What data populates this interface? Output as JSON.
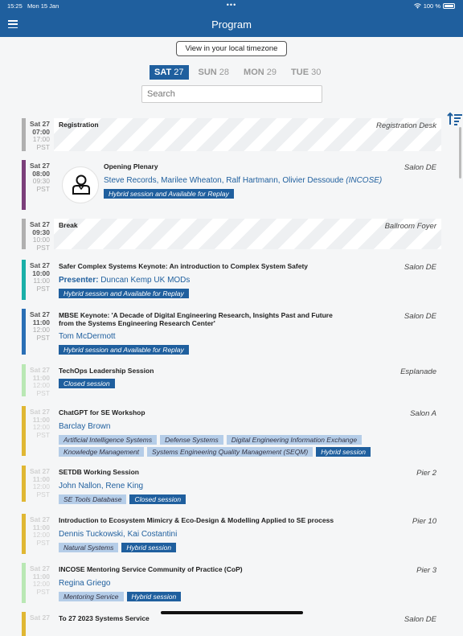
{
  "status": {
    "time": "15:25",
    "date": "Mon 15 Jan",
    "dots": "•••",
    "battery": "100 %"
  },
  "nav": {
    "title": "Program"
  },
  "timezone_button": "View in your local timezone",
  "days": [
    {
      "dow": "SAT",
      "num": "27",
      "active": true
    },
    {
      "dow": "SUN",
      "num": "28"
    },
    {
      "dow": "MON",
      "num": "29"
    },
    {
      "dow": "TUE",
      "num": "30"
    }
  ],
  "search": {
    "placeholder": "Search"
  },
  "colors": {
    "brand": "#1f5f9e",
    "gray": "#b0b0b0",
    "purple": "#7b3f7a",
    "teal": "#1ab0a8",
    "blue": "#2a6fb5",
    "light_green": "#b9e8b4",
    "mustard": "#e0b733"
  },
  "sessions": [
    {
      "day": "Sat 27",
      "start": "07:00",
      "end": "17:00",
      "tz": "PST",
      "title": "Registration",
      "room": "Registration Desk",
      "color": "#b0b0b0",
      "hatch": true,
      "speakers": "",
      "tags": []
    },
    {
      "day": "Sat 27",
      "start": "08:00",
      "end": "09:30",
      "tz": "PST",
      "title": "Opening Plenary",
      "room": "Salon DE",
      "color": "#7b3f7a",
      "avatar": true,
      "speakers": "Steve Records, Marilee Wheaton, Ralf Hartmann, Olivier Dessoude",
      "org": "(INCOSE)",
      "tags": [
        {
          "label": "Hybrid session and Available for Replay",
          "dark": true
        }
      ]
    },
    {
      "day": "Sat 27",
      "start": "09:30",
      "end": "10:00",
      "tz": "PST",
      "title": "Break",
      "room": "Ballroom Foyer",
      "color": "#b0b0b0",
      "hatch": true,
      "speakers": "",
      "tags": []
    },
    {
      "day": "Sat 27",
      "start": "10:00",
      "end": "11:00",
      "tz": "PST",
      "title": "Safer Complex Systems Keynote: An introduction to Complex System Safety",
      "room": "Salon DE",
      "color": "#1ab0a8",
      "presenter_label": "Presenter:",
      "speakers": "Duncan Kemp UK MODs",
      "tags": [
        {
          "label": "Hybrid session and Available for Replay",
          "dark": true
        }
      ]
    },
    {
      "day": "Sat 27",
      "start": "11:00",
      "end": "12:00",
      "tz": "PST",
      "title": "MBSE Keynote: 'A Decade of Digital Engineering Research, Insights Past and Future from the Systems Engineering Research Center'",
      "room": "Salon DE",
      "color": "#2a6fb5",
      "speakers": "Tom McDermott",
      "tags": [
        {
          "label": "Hybrid session and Available for Replay",
          "dark": true
        }
      ]
    },
    {
      "day": "Sat 27",
      "start": "11:00",
      "end": "12:00",
      "tz": "PST",
      "title": "TechOps Leadership Session",
      "room": "Esplanade",
      "color": "#b9e8b4",
      "faded": true,
      "speakers": "",
      "tags": [
        {
          "label": "Closed session",
          "dark": true
        }
      ]
    },
    {
      "day": "Sat 27",
      "start": "11:00",
      "end": "12:00",
      "tz": "PST",
      "title": "ChatGPT for SE Workshop",
      "room": "Salon A",
      "color": "#e0b733",
      "faded": true,
      "speakers": "Barclay Brown",
      "tags": [
        {
          "label": "Artificial Intelligence Systems"
        },
        {
          "label": "Defense Systems"
        },
        {
          "label": "Digital Engineering Information Exchange"
        },
        {
          "label": "Knowledge Management"
        },
        {
          "label": "Systems Engineering Quality Management (SEQM)"
        },
        {
          "label": "Hybrid session",
          "dark": true
        }
      ]
    },
    {
      "day": "Sat 27",
      "start": "11:00",
      "end": "12:00",
      "tz": "PST",
      "title": "SETDB Working Session",
      "room": "Pier 2",
      "color": "#e0b733",
      "faded": true,
      "speakers": "John Nallon, Rene King",
      "tags": [
        {
          "label": "SE Tools Database"
        },
        {
          "label": "Closed session",
          "dark": true
        }
      ]
    },
    {
      "day": "Sat 27",
      "start": "11:00",
      "end": "12:00",
      "tz": "PST",
      "title": "Introduction to Ecosystem Mimicry & Eco-Design & Modelling Applied to SE process",
      "room": "Pier 10",
      "color": "#e0b733",
      "faded": true,
      "speakers": "Dennis Tuckowski, Kai Costantini",
      "tags": [
        {
          "label": "Natural Systems"
        },
        {
          "label": "Hybrid session",
          "dark": true
        }
      ]
    },
    {
      "day": "Sat 27",
      "start": "11:00",
      "end": "12:00",
      "tz": "PST",
      "title": "INCOSE Mentoring Service Community of Practice (CoP)",
      "room": "Pier 3",
      "color": "#b9e8b4",
      "faded": true,
      "speakers": "Regina Griego",
      "tags": [
        {
          "label": "Mentoring Service"
        },
        {
          "label": "Hybrid session",
          "dark": true
        }
      ]
    },
    {
      "day": "Sat 27",
      "start": "",
      "end": "",
      "tz": "",
      "title": "To 27 2023 Systems Service",
      "room": "Salon DE",
      "color": "#e0b733",
      "faded": true,
      "speakers": "",
      "tags": []
    }
  ]
}
